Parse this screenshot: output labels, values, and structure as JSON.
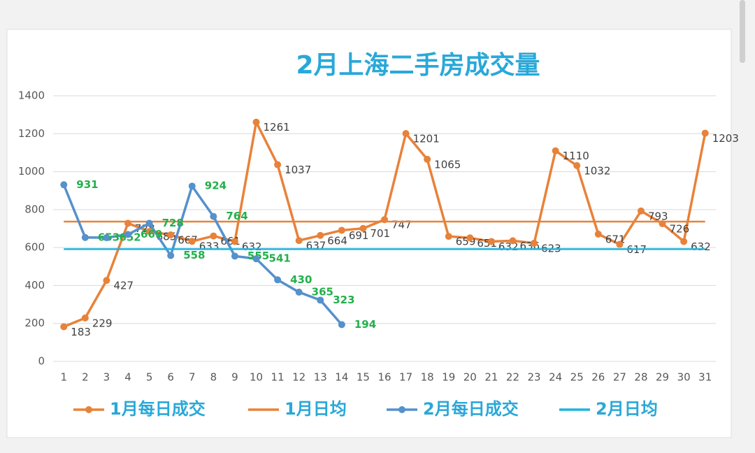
{
  "chart_data": {
    "type": "line",
    "title": "2月上海二手房成交量",
    "categories": [
      "1",
      "2",
      "3",
      "4",
      "5",
      "6",
      "7",
      "8",
      "9",
      "10",
      "11",
      "12",
      "13",
      "14",
      "15",
      "16",
      "17",
      "18",
      "19",
      "20",
      "21",
      "22",
      "23",
      "24",
      "25",
      "26",
      "27",
      "28",
      "29",
      "30",
      "31"
    ],
    "series": [
      {
        "name": "1月每日成交",
        "color": "#e8823a",
        "values": [
          183,
          229,
          427,
          728,
          685,
          667,
          633,
          661,
          632,
          1261,
          1037,
          637,
          664,
          691,
          701,
          747,
          1201,
          1065,
          659,
          651,
          632,
          636,
          623,
          1110,
          1032,
          671,
          617,
          793,
          726,
          632,
          1203
        ]
      },
      {
        "name": "1月日均",
        "color": "#e8823a",
        "value": 737
      },
      {
        "name": "2月每日成交",
        "color": "#5591cc",
        "values": [
          931,
          653,
          652,
          669,
          728,
          558,
          924,
          764,
          555,
          541,
          430,
          365,
          323,
          194,
          null,
          null,
          null,
          null,
          null,
          null,
          null,
          null,
          null,
          null,
          null,
          null,
          null,
          null,
          null,
          null,
          null
        ]
      },
      {
        "name": "2月日均",
        "color": "#1fb3e0",
        "value": 592
      }
    ],
    "ylim": [
      0,
      1400
    ],
    "yticks": [
      0,
      200,
      400,
      600,
      800,
      1000,
      1200,
      1400
    ],
    "grid": true
  }
}
